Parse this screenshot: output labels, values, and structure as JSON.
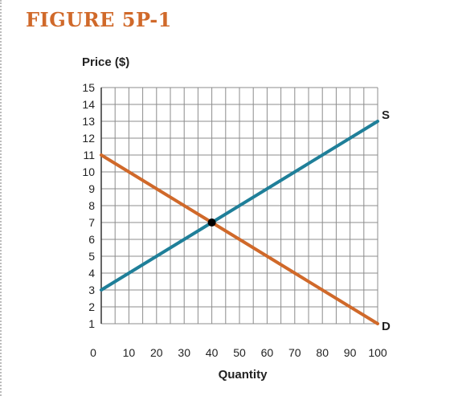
{
  "figure": {
    "title": "FIGURE 5P-1"
  },
  "colors": {
    "title": "#d0692a",
    "supply": "#1f7f99",
    "demand": "#d0692a",
    "equilibrium": "#000000",
    "grid": "#8c8c8c"
  },
  "chart_data": {
    "type": "line",
    "ylabel": "Price ($)",
    "xlabel": "Quantity",
    "xlim": [
      0,
      100
    ],
    "ylim": [
      0,
      15
    ],
    "x_ticks": [
      "0",
      "10",
      "20",
      "30",
      "40",
      "50",
      "60",
      "70",
      "80",
      "90",
      "100"
    ],
    "y_ticks": [
      "1",
      "2",
      "3",
      "4",
      "5",
      "6",
      "7",
      "8",
      "9",
      "10",
      "11",
      "12",
      "13",
      "14",
      "15"
    ],
    "grid": true,
    "series": [
      {
        "name": "S",
        "points": [
          [
            0,
            3
          ],
          [
            100,
            13
          ]
        ]
      },
      {
        "name": "D",
        "points": [
          [
            0,
            11
          ],
          [
            100,
            1
          ]
        ]
      }
    ],
    "equilibrium": {
      "x": 40,
      "y": 7
    }
  }
}
